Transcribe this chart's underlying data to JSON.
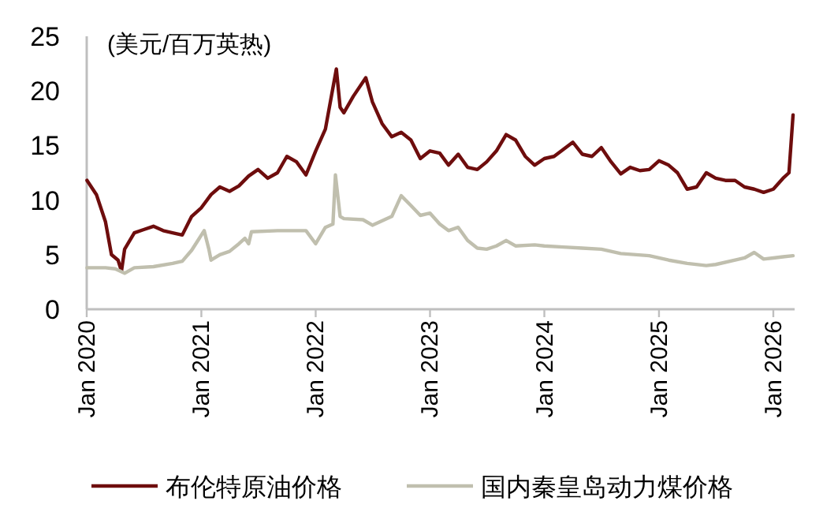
{
  "chart_data": {
    "type": "line",
    "ylabel": "(美元/百万英热)",
    "xlim": [
      "2020-01-01",
      "2026-03-10"
    ],
    "ylim": [
      0,
      25
    ],
    "yticks": [
      0,
      5,
      10,
      15,
      20,
      25
    ],
    "xticks": [
      {
        "value": "2020-01-01",
        "label": "Jan 2020"
      },
      {
        "value": "2021-01-01",
        "label": "Jan 2021"
      },
      {
        "value": "2022-01-01",
        "label": "Jan 2022"
      },
      {
        "value": "2023-01-01",
        "label": "Jan 2023"
      },
      {
        "value": "2024-01-01",
        "label": "Jan 2024"
      },
      {
        "value": "2025-01-01",
        "label": "Jan 2025"
      },
      {
        "value": "2026-01-01",
        "label": "Jan 2026"
      }
    ],
    "grid": false,
    "legend": "bottom",
    "marker": "none",
    "line_style": "solid",
    "series": [
      {
        "name": "布伦特原油价格",
        "color": "#6e0d0d",
        "x": [
          "2020-01-02",
          "2020-02-01",
          "2020-03-01",
          "2020-03-20",
          "2020-04-10",
          "2020-04-21",
          "2020-05-01",
          "2020-06-01",
          "2020-07-01",
          "2020-08-01",
          "2020-09-01",
          "2020-10-01",
          "2020-11-01",
          "2020-12-01",
          "2021-01-01",
          "2021-02-01",
          "2021-03-01",
          "2021-04-01",
          "2021-05-01",
          "2021-06-01",
          "2021-07-01",
          "2021-08-01",
          "2021-09-01",
          "2021-10-01",
          "2021-11-01",
          "2021-12-01",
          "2022-01-01",
          "2022-02-01",
          "2022-03-08",
          "2022-03-20",
          "2022-04-01",
          "2022-05-01",
          "2022-06-10",
          "2022-07-01",
          "2022-08-01",
          "2022-09-01",
          "2022-10-01",
          "2022-11-01",
          "2022-12-01",
          "2023-01-01",
          "2023-02-01",
          "2023-03-01",
          "2023-04-01",
          "2023-05-01",
          "2023-06-01",
          "2023-07-01",
          "2023-08-01",
          "2023-09-01",
          "2023-10-01",
          "2023-11-01",
          "2023-12-01",
          "2024-01-01",
          "2024-02-01",
          "2024-04-01",
          "2024-05-01",
          "2024-06-01",
          "2024-07-01",
          "2024-08-01",
          "2024-09-01",
          "2024-10-01",
          "2024-11-01",
          "2024-12-01",
          "2025-01-01",
          "2025-02-01",
          "2025-03-01",
          "2025-04-01",
          "2025-05-01",
          "2025-06-01",
          "2025-07-01",
          "2025-08-01",
          "2025-09-01",
          "2025-10-01",
          "2025-11-01",
          "2025-12-01",
          "2026-01-01",
          "2026-02-01",
          "2026-02-20",
          "2026-03-05"
        ],
        "values": [
          11.8,
          10.5,
          8,
          5,
          4.5,
          3.5,
          5.5,
          7,
          7.3,
          7.6,
          7.2,
          7,
          6.8,
          8.5,
          9.3,
          10.5,
          11.2,
          10.8,
          11.3,
          12.2,
          12.8,
          12,
          12.5,
          14,
          13.5,
          12.3,
          14.5,
          16.5,
          22,
          18.5,
          18,
          19.5,
          21.2,
          19,
          17,
          15.8,
          16.2,
          15.5,
          13.8,
          14.5,
          14.3,
          13.2,
          14.2,
          13,
          12.8,
          13.5,
          14.5,
          16,
          15.5,
          14,
          13.2,
          13.8,
          14,
          15.3,
          14.2,
          14,
          14.8,
          13.5,
          12.4,
          13,
          12.7,
          12.8,
          13.6,
          13.2,
          12.5,
          11,
          11.2,
          12.5,
          12,
          11.8,
          11.8,
          11.2,
          11,
          10.7,
          11,
          12,
          12.5,
          17.8
        ]
      },
      {
        "name": "国内秦皇岛动力煤价格",
        "color": "#c0bfae",
        "x": [
          "2020-01-02",
          "2020-03-01",
          "2020-04-01",
          "2020-05-01",
          "2020-06-01",
          "2020-08-01",
          "2020-10-01",
          "2020-11-01",
          "2020-12-01",
          "2021-01-10",
          "2021-01-25",
          "2021-02-01",
          "2021-03-01",
          "2021-04-01",
          "2021-05-01",
          "2021-05-20",
          "2021-06-01",
          "2021-06-10",
          "2021-09-01",
          "2021-12-01",
          "2022-01-01",
          "2022-02-01",
          "2022-02-25",
          "2022-03-05",
          "2022-03-20",
          "2022-04-01",
          "2022-06-01",
          "2022-07-01",
          "2022-09-01",
          "2022-10-01",
          "2022-11-01",
          "2022-12-01",
          "2023-01-01",
          "2023-02-01",
          "2023-03-01",
          "2023-04-01",
          "2023-05-01",
          "2023-06-01",
          "2023-07-01",
          "2023-08-01",
          "2023-09-01",
          "2023-10-01",
          "2023-12-01",
          "2024-01-01",
          "2024-03-01",
          "2024-05-01",
          "2024-07-01",
          "2024-09-01",
          "2024-12-01",
          "2025-02-01",
          "2025-04-01",
          "2025-06-01",
          "2025-07-01",
          "2025-09-01",
          "2025-10-01",
          "2025-11-01",
          "2025-12-01",
          "2026-01-01",
          "2026-02-01",
          "2026-03-05"
        ],
        "values": [
          3.8,
          3.8,
          3.7,
          3.3,
          3.8,
          3.9,
          4.2,
          4.4,
          5.4,
          7.2,
          5.5,
          4.5,
          5,
          5.3,
          6,
          6.5,
          6,
          7.1,
          7.2,
          7.2,
          6,
          7.5,
          7.8,
          12.3,
          8.5,
          8.3,
          8.2,
          7.7,
          8.5,
          10.4,
          9.5,
          8.6,
          8.8,
          7.8,
          7.2,
          7.5,
          6.3,
          5.6,
          5.5,
          5.8,
          6.3,
          5.8,
          5.9,
          5.8,
          5.7,
          5.6,
          5.5,
          5.1,
          4.9,
          4.5,
          4.2,
          4,
          4.1,
          4.5,
          4.7,
          5.2,
          4.6,
          4.7,
          4.8,
          4.9
        ]
      }
    ]
  }
}
